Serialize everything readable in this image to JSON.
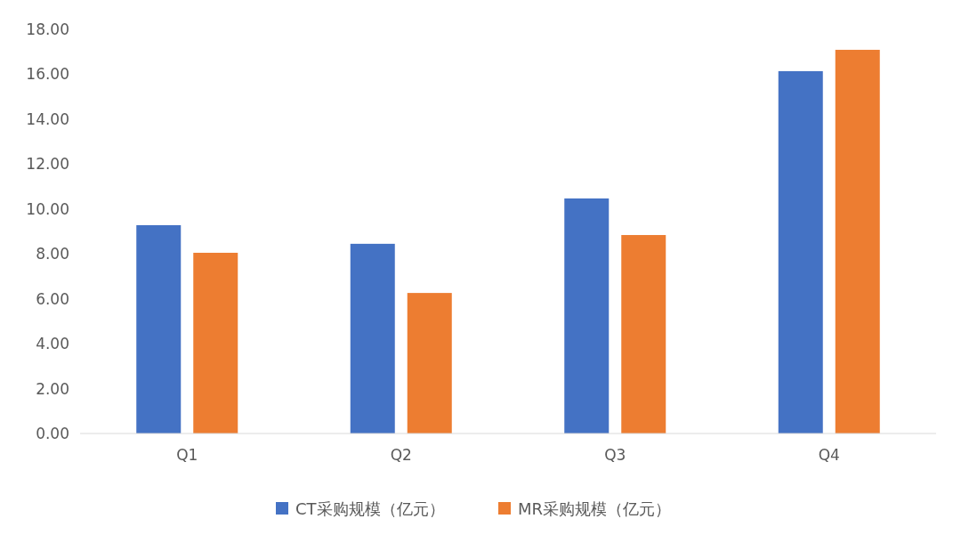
{
  "chart_data": {
    "type": "bar",
    "categories": [
      "Q1",
      "Q2",
      "Q3",
      "Q4"
    ],
    "series": [
      {
        "name": "CT采购规模（亿元）",
        "color": "#4472c4",
        "values": [
          9.28,
          8.45,
          10.47,
          16.14
        ]
      },
      {
        "name": "MR采购规模（亿元）",
        "color": "#ed7d31",
        "values": [
          8.05,
          6.26,
          8.84,
          17.09
        ]
      }
    ],
    "ylim": [
      0,
      18
    ],
    "yticks": [
      {
        "value": 0,
        "label": "0.00"
      },
      {
        "value": 2,
        "label": "2.00"
      },
      {
        "value": 4,
        "label": "4.00"
      },
      {
        "value": 6,
        "label": "6.00"
      },
      {
        "value": 8,
        "label": "8.00"
      },
      {
        "value": 10,
        "label": "10.00"
      },
      {
        "value": 12,
        "label": "12.00"
      },
      {
        "value": 14,
        "label": "14.00"
      },
      {
        "value": 16,
        "label": "16.00"
      },
      {
        "value": 18,
        "label": "18.00"
      }
    ],
    "grid": false,
    "legend": "bottom"
  }
}
